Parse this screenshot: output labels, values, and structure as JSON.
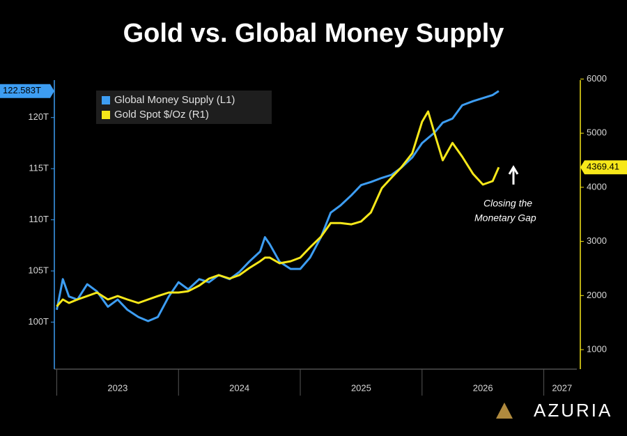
{
  "chart_data": {
    "type": "line",
    "title": "Gold vs. Global Money Supply",
    "x": [
      2023.0,
      2023.05,
      2023.1,
      2023.17,
      2023.25,
      2023.33,
      2023.42,
      2023.5,
      2023.58,
      2023.67,
      2023.75,
      2023.83,
      2023.92,
      2024.0,
      2024.08,
      2024.17,
      2024.25,
      2024.33,
      2024.42,
      2024.5,
      2024.58,
      2024.67,
      2024.71,
      2024.75,
      2024.83,
      2024.92,
      2025.0,
      2025.08,
      2025.17,
      2025.25,
      2025.33,
      2025.42,
      2025.5,
      2025.58,
      2025.67,
      2025.75,
      2025.83,
      2025.92,
      2026.0,
      2026.05,
      2026.1,
      2026.17,
      2026.25,
      2026.33,
      2026.42,
      2026.5,
      2026.58,
      2026.63
    ],
    "xlim": [
      2022.98,
      2027.3
    ],
    "xticks": [
      2023,
      2024,
      2025,
      2026,
      2027
    ],
    "ylim": [
      95.4,
      124
    ],
    "yticks": [
      {
        "value": 100,
        "label": "100T"
      },
      {
        "value": 105,
        "label": "105T"
      },
      {
        "value": 110,
        "label": "110T"
      },
      {
        "value": 115,
        "label": "115T"
      },
      {
        "value": 120,
        "label": "120T"
      }
    ],
    "y2lim": [
      640,
      6045
    ],
    "y2ticks": [
      1000,
      2000,
      3000,
      4000,
      5000,
      6000
    ],
    "legend": "top-left",
    "series": [
      {
        "name": "Global Money Supply (L1)",
        "color": "#3d9df2",
        "axis": "y",
        "values": [
          101.2,
          104.2,
          102.5,
          102.2,
          103.7,
          103.0,
          101.5,
          102.2,
          101.2,
          100.5,
          100.1,
          100.5,
          102.5,
          103.9,
          103.2,
          104.2,
          103.9,
          104.6,
          104.2,
          104.9,
          105.9,
          106.9,
          108.3,
          107.6,
          105.9,
          105.2,
          105.2,
          106.3,
          108.3,
          110.7,
          111.4,
          112.4,
          113.4,
          113.7,
          114.1,
          114.4,
          115.1,
          116.1,
          117.5,
          118.0,
          118.5,
          119.5,
          119.9,
          121.2,
          121.6,
          121.9,
          122.2,
          122.583
        ],
        "end_label": "122.583T"
      },
      {
        "name": "Gold Spot $/Oz (R1)",
        "color": "#f7e81a",
        "axis": "y2",
        "values": [
          1800,
          1927,
          1862,
          1927,
          1990,
          2055,
          1927,
          1990,
          1927,
          1862,
          1927,
          1990,
          2055,
          2055,
          2080,
          2184,
          2313,
          2377,
          2313,
          2377,
          2506,
          2634,
          2700,
          2700,
          2596,
          2634,
          2700,
          2890,
          3085,
          3340,
          3340,
          3316,
          3370,
          3535,
          3985,
          4180,
          4370,
          4630,
          5210,
          5400,
          5015,
          4500,
          4820,
          4565,
          4245,
          4050,
          4115,
          4369.41
        ],
        "end_label": "4369.41"
      }
    ],
    "annotations": [
      "Closing the",
      "Monetary Gap"
    ],
    "brand": "AZURIA"
  }
}
